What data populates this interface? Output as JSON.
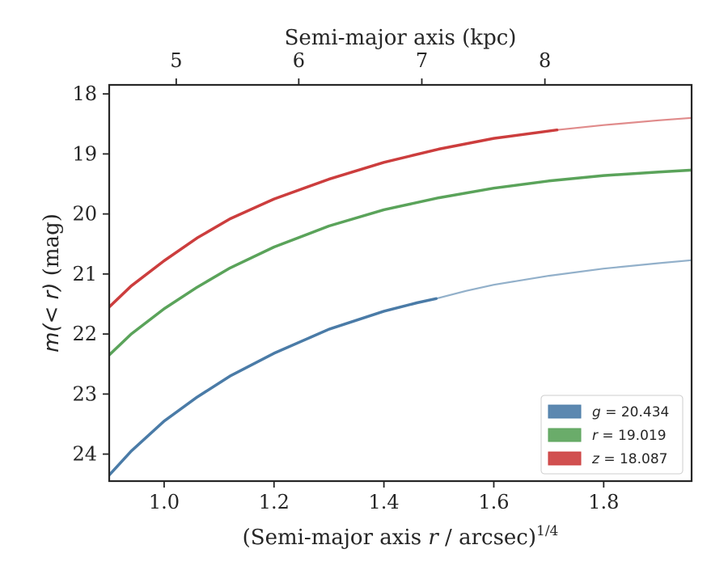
{
  "chart_data": {
    "type": "line",
    "xlabel": "(Semi-major axis r / arcsec)^1/4",
    "xlabel_parts": {
      "pre": "(Semi-major axis ",
      "var": "r",
      "post": " / arcsec)",
      "sup": "1/4"
    },
    "ylabel": "m(<r) (mag)",
    "ylabel_parts": {
      "math": "m(< r)",
      "unit": " (mag)"
    },
    "top_xlabel": "Semi-major axis (kpc)",
    "xlim": [
      0.9,
      1.96
    ],
    "ylim": [
      24.45,
      17.85
    ],
    "y_inverted": true,
    "xticks": [
      1.0,
      1.2,
      1.4,
      1.6,
      1.8
    ],
    "xtick_labels": [
      "1.0",
      "1.2",
      "1.4",
      "1.6",
      "1.8"
    ],
    "yticks": [
      18,
      19,
      20,
      21,
      22,
      23,
      24
    ],
    "ytick_labels": [
      "18",
      "19",
      "20",
      "21",
      "22",
      "23",
      "24"
    ],
    "top_xticks": [
      5,
      6,
      7,
      8
    ],
    "top_xtick_labels": [
      "5",
      "6",
      "7",
      "8"
    ],
    "top_xtick_positions": [
      1.022,
      1.245,
      1.469,
      1.693
    ],
    "legend_placement": "lower-right",
    "grid": false,
    "series": [
      {
        "name": "g = 20.434",
        "legend_var": "g",
        "legend_value": "20.434",
        "color": "#4a7ba7",
        "x": [
          0.9,
          0.94,
          1.0,
          1.06,
          1.12,
          1.2,
          1.3,
          1.4,
          1.46,
          1.495,
          1.55,
          1.6,
          1.7,
          1.8,
          1.9,
          1.96
        ],
        "y": [
          24.35,
          23.95,
          23.45,
          23.05,
          22.7,
          22.32,
          21.92,
          21.62,
          21.48,
          21.41,
          21.28,
          21.18,
          21.03,
          20.91,
          20.82,
          20.77
        ],
        "measured_until": 1.495
      },
      {
        "name": "r = 19.019",
        "legend_var": "r",
        "legend_value": "19.019",
        "color": "#5aa35a",
        "x": [
          0.9,
          0.94,
          1.0,
          1.06,
          1.12,
          1.2,
          1.3,
          1.4,
          1.5,
          1.6,
          1.7,
          1.8,
          1.9,
          1.96
        ],
        "y": [
          22.35,
          22.0,
          21.58,
          21.22,
          20.9,
          20.55,
          20.2,
          19.93,
          19.73,
          19.57,
          19.45,
          19.36,
          19.3,
          19.27
        ],
        "measured_until": 1.96
      },
      {
        "name": "z = 18.087",
        "legend_var": "z",
        "legend_value": "18.087",
        "color": "#cc3d3d",
        "x": [
          0.9,
          0.94,
          1.0,
          1.06,
          1.12,
          1.2,
          1.3,
          1.4,
          1.5,
          1.6,
          1.715,
          1.8,
          1.9,
          1.96
        ],
        "y": [
          21.55,
          21.2,
          20.78,
          20.4,
          20.08,
          19.75,
          19.42,
          19.14,
          18.92,
          18.74,
          18.6,
          18.52,
          18.44,
          18.4
        ],
        "measured_until": 1.715
      }
    ]
  }
}
